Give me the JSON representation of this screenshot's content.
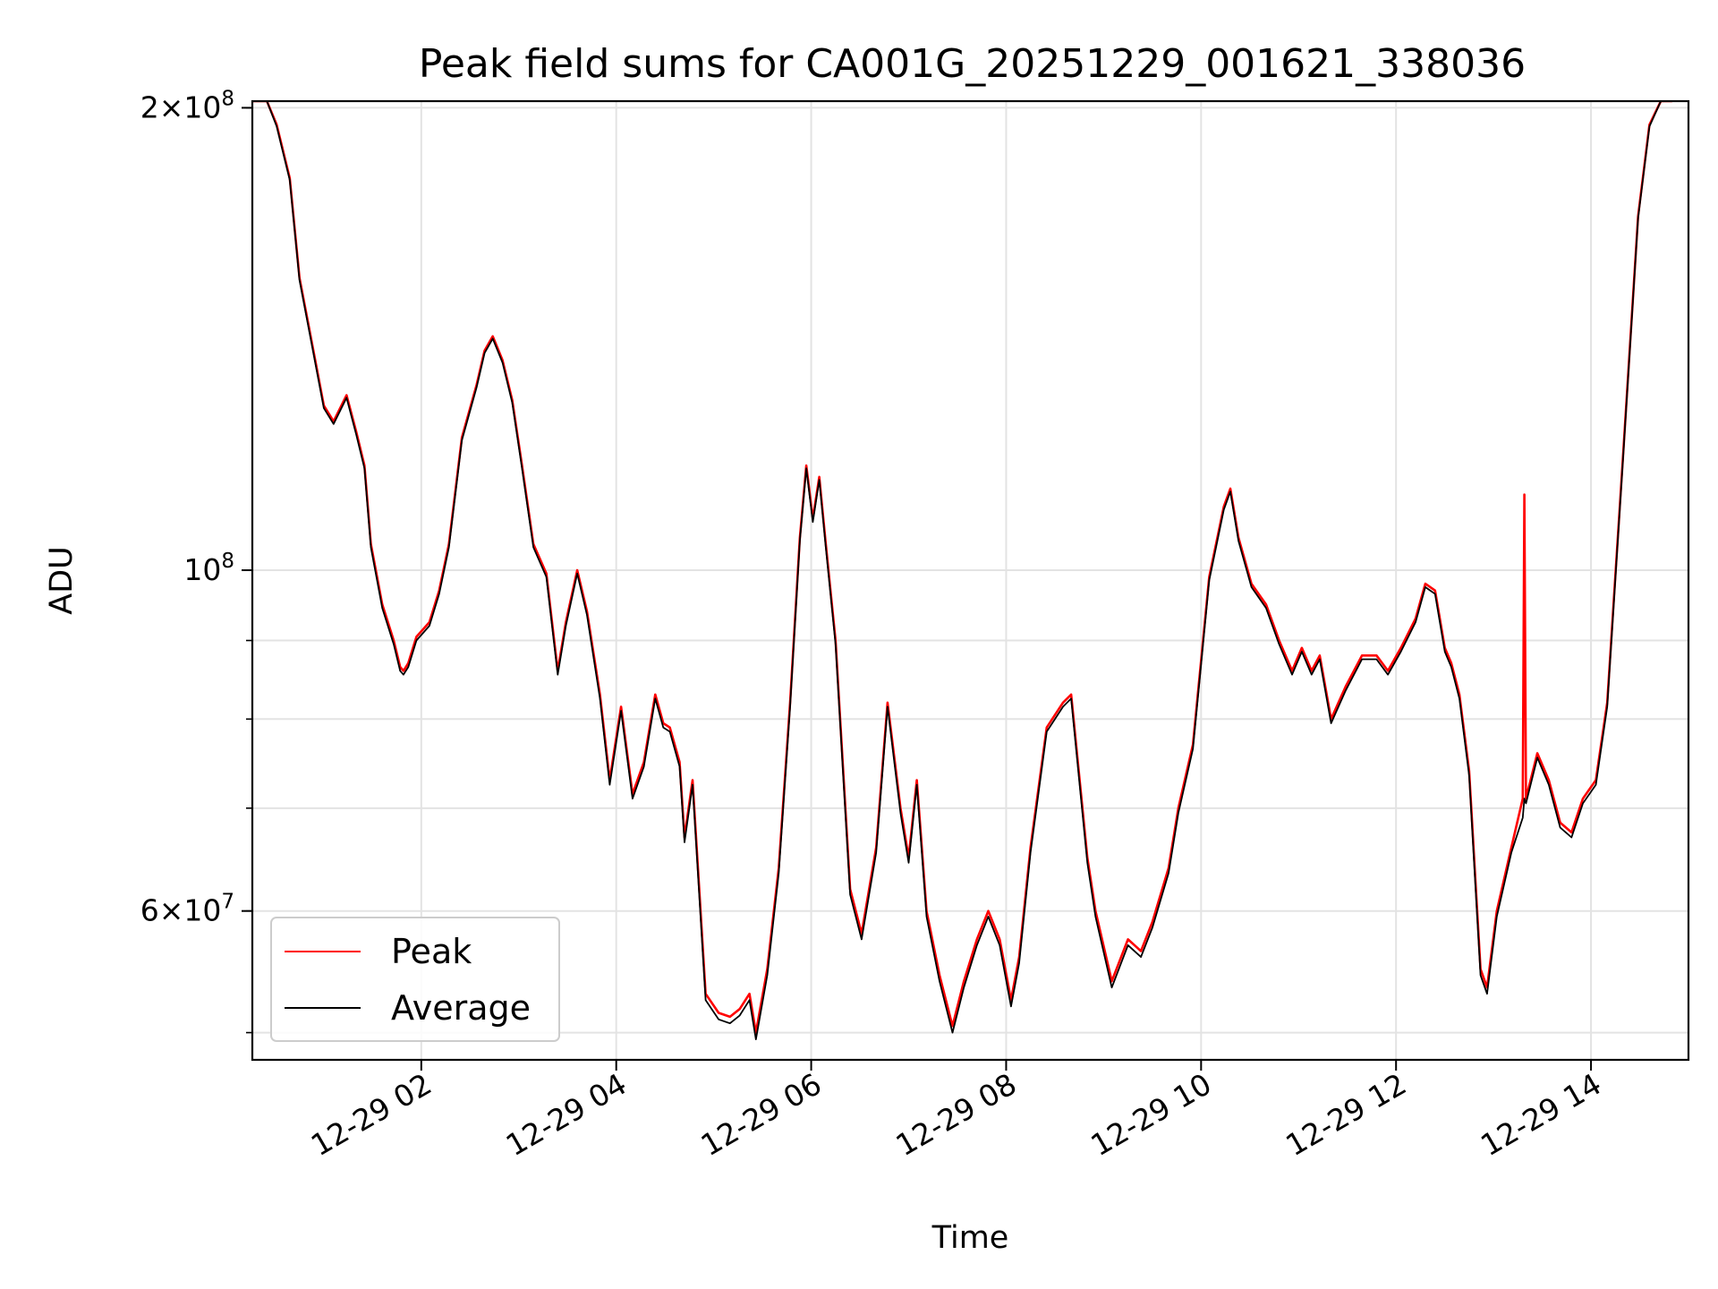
{
  "chart_data": {
    "type": "line",
    "title": "Peak field sums for CA001G_20251229_001621_338036",
    "xlabel": "Time",
    "ylabel": "ADU",
    "yscale": "log",
    "ylim": [
      48000000,
      202000000
    ],
    "xlim": [
      "2025-12-29 00:16",
      "2025-12-29 15:00"
    ],
    "x_ticks": [
      "2025-12-29 02:00",
      "2025-12-29 04:00",
      "2025-12-29 06:00",
      "2025-12-29 08:00",
      "2025-12-29 10:00",
      "2025-12-29 12:00",
      "2025-12-29 14:00"
    ],
    "x_tick_labels": [
      "12-29 02",
      "12-29 04",
      "12-29 06",
      "12-29 08",
      "12-29 10",
      "12-29 12",
      "12-29 14"
    ],
    "y_ticks": [
      {
        "value": 200000000,
        "mantissa": "2",
        "exp": "8"
      },
      {
        "value": 100000000,
        "mantissa": "",
        "exp": "8"
      },
      {
        "value": 60000000,
        "mantissa": "6",
        "exp": "7"
      }
    ],
    "y_gridlines": [
      50000000,
      60000000,
      70000000,
      80000000,
      90000000,
      100000000,
      200000000
    ],
    "grid": true,
    "legend_position": "lower-left",
    "series": [
      {
        "name": "Peak",
        "color": "#ff0000",
        "x": [
          "2025-12-29 00:16",
          "2025-12-29 00:25",
          "2025-12-29 00:31",
          "2025-12-29 00:39",
          "2025-12-29 00:45",
          "2025-12-29 00:53",
          "2025-12-29 01:00",
          "2025-12-29 01:06",
          "2025-12-29 01:14",
          "2025-12-29 01:20",
          "2025-12-29 01:25",
          "2025-12-29 01:29",
          "2025-12-29 01:36",
          "2025-12-29 01:43",
          "2025-12-29 01:47",
          "2025-12-29 01:49",
          "2025-12-29 01:52",
          "2025-12-29 01:57",
          "2025-12-29 02:05",
          "2025-12-29 02:11",
          "2025-12-29 02:17",
          "2025-12-29 02:25",
          "2025-12-29 02:34",
          "2025-12-29 02:39",
          "2025-12-29 02:44",
          "2025-12-29 02:50",
          "2025-12-29 02:56",
          "2025-12-29 03:02",
          "2025-12-29 03:09",
          "2025-12-29 03:17",
          "2025-12-29 03:24",
          "2025-12-29 03:29",
          "2025-12-29 03:36",
          "2025-12-29 03:42",
          "2025-12-29 03:50",
          "2025-12-29 03:56",
          "2025-12-29 04:03",
          "2025-12-29 04:10",
          "2025-12-29 04:17",
          "2025-12-29 04:24",
          "2025-12-29 04:29",
          "2025-12-29 04:33",
          "2025-12-29 04:39",
          "2025-12-29 04:42",
          "2025-12-29 04:47",
          "2025-12-29 04:55",
          "2025-12-29 05:03",
          "2025-12-29 05:10",
          "2025-12-29 05:16",
          "2025-12-29 05:22",
          "2025-12-29 05:26",
          "2025-12-29 05:33",
          "2025-12-29 05:40",
          "2025-12-29 05:47",
          "2025-12-29 05:53",
          "2025-12-29 05:57",
          "2025-12-29 06:01",
          "2025-12-29 06:05",
          "2025-12-29 06:09",
          "2025-12-29 06:15",
          "2025-12-29 06:24",
          "2025-12-29 06:31",
          "2025-12-29 06:40",
          "2025-12-29 06:47",
          "2025-12-29 06:55",
          "2025-12-29 07:00",
          "2025-12-29 07:05",
          "2025-12-29 07:11",
          "2025-12-29 07:19",
          "2025-12-29 07:27",
          "2025-12-29 07:34",
          "2025-12-29 07:42",
          "2025-12-29 07:49",
          "2025-12-29 07:56",
          "2025-12-29 08:03",
          "2025-12-29 08:08",
          "2025-12-29 08:15",
          "2025-12-29 08:25",
          "2025-12-29 08:35",
          "2025-12-29 08:40",
          "2025-12-29 08:50",
          "2025-12-29 08:55",
          "2025-12-29 09:05",
          "2025-12-29 09:15",
          "2025-12-29 09:23",
          "2025-12-29 09:30",
          "2025-12-29 09:40",
          "2025-12-29 09:46",
          "2025-12-29 09:55",
          "2025-12-29 10:05",
          "2025-12-29 10:14",
          "2025-12-29 10:18",
          "2025-12-29 10:23",
          "2025-12-29 10:31",
          "2025-12-29 10:40",
          "2025-12-29 10:48",
          "2025-12-29 10:56",
          "2025-12-29 11:02",
          "2025-12-29 11:08",
          "2025-12-29 11:13",
          "2025-12-29 11:20",
          "2025-12-29 11:29",
          "2025-12-29 11:39",
          "2025-12-29 11:48",
          "2025-12-29 11:55",
          "2025-12-29 12:03",
          "2025-12-29 12:12",
          "2025-12-29 12:18",
          "2025-12-29 12:24",
          "2025-12-29 12:30",
          "2025-12-29 12:34",
          "2025-12-29 12:39",
          "2025-12-29 12:45",
          "2025-12-29 12:52",
          "2025-12-29 12:56",
          "2025-12-29 13:02",
          "2025-12-29 13:11",
          "2025-12-29 13:18",
          "2025-12-29 13:19",
          "2025-12-29 13:20",
          "2025-12-29 13:27",
          "2025-12-29 13:34",
          "2025-12-29 13:41",
          "2025-12-29 13:48",
          "2025-12-29 13:55",
          "2025-12-29 14:03",
          "2025-12-29 14:10",
          "2025-12-29 14:20",
          "2025-12-29 14:29",
          "2025-12-29 14:36",
          "2025-12-29 14:43",
          "2025-12-29 14:50"
        ],
        "y": [
          202000000,
          202000000,
          195000000,
          180000000,
          155000000,
          140000000,
          128000000,
          125000000,
          130000000,
          123000000,
          117000000,
          104000000,
          95000000,
          90000000,
          86500000,
          86000000,
          87000000,
          90500000,
          92500000,
          97000000,
          104000000,
          122000000,
          132000000,
          139000000,
          142000000,
          137000000,
          129000000,
          117000000,
          104000000,
          99500000,
          86000000,
          92500000,
          100000000,
          94000000,
          83000000,
          73000000,
          81500000,
          71500000,
          75000000,
          83000000,
          79500000,
          79000000,
          75000000,
          67000000,
          73000000,
          53000000,
          51500000,
          51200000,
          51800000,
          53000000,
          50000000,
          55000000,
          64000000,
          82000000,
          105000000,
          117000000,
          108000000,
          115000000,
          104000000,
          90000000,
          62000000,
          58000000,
          66000000,
          82000000,
          70000000,
          65000000,
          73000000,
          60000000,
          54500000,
          50500000,
          54000000,
          57500000,
          60000000,
          57500000,
          52500000,
          56000000,
          66000000,
          79000000,
          82000000,
          83000000,
          65000000,
          60000000,
          54000000,
          57500000,
          56500000,
          59000000,
          64000000,
          70000000,
          77000000,
          99000000,
          110000000,
          113000000,
          105000000,
          98000000,
          95000000,
          90000000,
          86000000,
          89000000,
          86000000,
          88000000,
          80000000,
          84000000,
          88000000,
          88000000,
          86000000,
          89000000,
          93000000,
          98000000,
          97000000,
          89000000,
          87000000,
          83000000,
          74000000,
          55000000,
          53500000,
          60000000,
          66000000,
          71000000,
          112000000,
          71000000,
          76000000,
          73000000,
          68500000,
          67500000,
          71000000,
          73000000,
          82000000,
          120000000,
          170000000,
          195000000,
          202000000,
          202000000
        ]
      },
      {
        "name": "Average",
        "color": "#000000",
        "x": [
          "2025-12-29 00:16",
          "2025-12-29 00:25",
          "2025-12-29 00:31",
          "2025-12-29 00:39",
          "2025-12-29 00:45",
          "2025-12-29 00:53",
          "2025-12-29 01:00",
          "2025-12-29 01:06",
          "2025-12-29 01:14",
          "2025-12-29 01:20",
          "2025-12-29 01:25",
          "2025-12-29 01:29",
          "2025-12-29 01:36",
          "2025-12-29 01:43",
          "2025-12-29 01:47",
          "2025-12-29 01:49",
          "2025-12-29 01:52",
          "2025-12-29 01:57",
          "2025-12-29 02:05",
          "2025-12-29 02:11",
          "2025-12-29 02:17",
          "2025-12-29 02:25",
          "2025-12-29 02:34",
          "2025-12-29 02:39",
          "2025-12-29 02:44",
          "2025-12-29 02:50",
          "2025-12-29 02:56",
          "2025-12-29 03:02",
          "2025-12-29 03:09",
          "2025-12-29 03:17",
          "2025-12-29 03:24",
          "2025-12-29 03:29",
          "2025-12-29 03:36",
          "2025-12-29 03:42",
          "2025-12-29 03:50",
          "2025-12-29 03:56",
          "2025-12-29 04:03",
          "2025-12-29 04:10",
          "2025-12-29 04:17",
          "2025-12-29 04:24",
          "2025-12-29 04:29",
          "2025-12-29 04:33",
          "2025-12-29 04:39",
          "2025-12-29 04:42",
          "2025-12-29 04:47",
          "2025-12-29 04:55",
          "2025-12-29 05:03",
          "2025-12-29 05:10",
          "2025-12-29 05:16",
          "2025-12-29 05:22",
          "2025-12-29 05:26",
          "2025-12-29 05:33",
          "2025-12-29 05:40",
          "2025-12-29 05:47",
          "2025-12-29 05:53",
          "2025-12-29 05:57",
          "2025-12-29 06:01",
          "2025-12-29 06:05",
          "2025-12-29 06:09",
          "2025-12-29 06:15",
          "2025-12-29 06:24",
          "2025-12-29 06:31",
          "2025-12-29 06:40",
          "2025-12-29 06:47",
          "2025-12-29 06:55",
          "2025-12-29 07:00",
          "2025-12-29 07:05",
          "2025-12-29 07:11",
          "2025-12-29 07:19",
          "2025-12-29 07:27",
          "2025-12-29 07:34",
          "2025-12-29 07:42",
          "2025-12-29 07:49",
          "2025-12-29 07:56",
          "2025-12-29 08:03",
          "2025-12-29 08:08",
          "2025-12-29 08:15",
          "2025-12-29 08:25",
          "2025-12-29 08:35",
          "2025-12-29 08:40",
          "2025-12-29 08:50",
          "2025-12-29 08:55",
          "2025-12-29 09:05",
          "2025-12-29 09:15",
          "2025-12-29 09:23",
          "2025-12-29 09:30",
          "2025-12-29 09:40",
          "2025-12-29 09:46",
          "2025-12-29 09:55",
          "2025-12-29 10:05",
          "2025-12-29 10:14",
          "2025-12-29 10:18",
          "2025-12-29 10:23",
          "2025-12-29 10:31",
          "2025-12-29 10:40",
          "2025-12-29 10:48",
          "2025-12-29 10:56",
          "2025-12-29 11:02",
          "2025-12-29 11:08",
          "2025-12-29 11:13",
          "2025-12-29 11:20",
          "2025-12-29 11:29",
          "2025-12-29 11:39",
          "2025-12-29 11:48",
          "2025-12-29 11:55",
          "2025-12-29 12:03",
          "2025-12-29 12:12",
          "2025-12-29 12:18",
          "2025-12-29 12:24",
          "2025-12-29 12:30",
          "2025-12-29 12:34",
          "2025-12-29 12:39",
          "2025-12-29 12:45",
          "2025-12-29 12:52",
          "2025-12-29 12:56",
          "2025-12-29 13:02",
          "2025-12-29 13:11",
          "2025-12-29 13:18",
          "2025-12-29 13:19",
          "2025-12-29 13:20",
          "2025-12-29 13:27",
          "2025-12-29 13:34",
          "2025-12-29 13:41",
          "2025-12-29 13:48",
          "2025-12-29 13:55",
          "2025-12-29 14:03",
          "2025-12-29 14:10",
          "2025-12-29 14:20",
          "2025-12-29 14:29",
          "2025-12-29 14:36",
          "2025-12-29 14:43",
          "2025-12-29 14:50"
        ],
        "y": [
          202000000,
          202000000,
          194500000,
          179500000,
          154500000,
          139500000,
          127500000,
          124500000,
          129500000,
          122500000,
          116500000,
          103500000,
          94500000,
          89500000,
          86000000,
          85500000,
          86500000,
          90000000,
          92000000,
          96500000,
          103500000,
          121500000,
          131500000,
          138500000,
          141500000,
          136500000,
          128500000,
          116500000,
          103500000,
          99000000,
          85500000,
          92000000,
          99500000,
          93500000,
          82500000,
          72500000,
          81000000,
          71000000,
          74500000,
          82500000,
          79000000,
          78500000,
          74500000,
          66500000,
          72500000,
          52500000,
          51000000,
          50700000,
          51300000,
          52500000,
          49500000,
          54500000,
          63500000,
          81500000,
          104500000,
          116500000,
          107500000,
          114500000,
          103500000,
          89500000,
          61500000,
          57500000,
          65500000,
          81500000,
          69500000,
          64500000,
          72500000,
          59500000,
          54000000,
          50000000,
          53500000,
          57000000,
          59500000,
          57000000,
          52000000,
          55500000,
          65500000,
          78500000,
          81500000,
          82500000,
          64500000,
          59500000,
          53500000,
          57000000,
          56000000,
          58500000,
          63500000,
          69500000,
          76500000,
          98500000,
          109500000,
          112500000,
          104500000,
          97500000,
          94500000,
          89500000,
          85500000,
          88500000,
          85500000,
          87500000,
          79500000,
          83500000,
          87500000,
          87500000,
          85500000,
          88500000,
          92500000,
          97500000,
          96500000,
          88500000,
          86500000,
          82500000,
          73500000,
          54500000,
          53000000,
          59500000,
          65500000,
          69000000,
          71000000,
          70500000,
          75500000,
          72500000,
          68000000,
          67000000,
          70500000,
          72500000,
          81500000,
          119500000,
          169500000,
          194500000,
          202000000,
          202000000
        ]
      }
    ]
  }
}
